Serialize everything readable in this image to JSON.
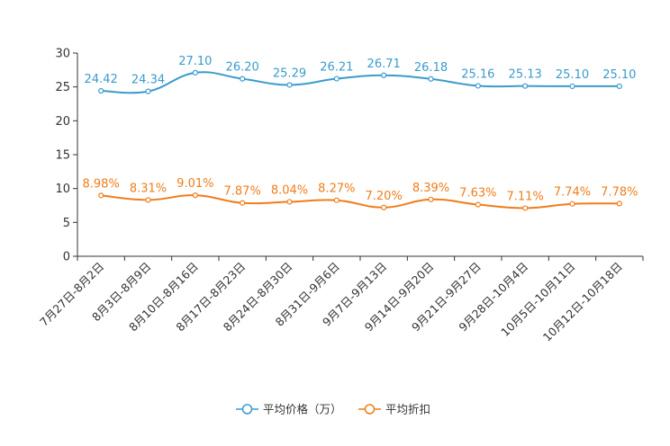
{
  "chart_data": {
    "type": "line",
    "categories": [
      "7月27日-8月2日",
      "8月3日-8月9日",
      "8月10日-8月16日",
      "8月17日-8月23日",
      "8月24日-8月30日",
      "8月31日-9月6日",
      "9月7日-9月13日",
      "9月14日-9月20日",
      "9月21日-9月27日",
      "9月28日-10月4日",
      "10月5日-10月11日",
      "10月12日-10月18日"
    ],
    "series": [
      {
        "name": "平均价格（万）",
        "color": "#3a9bcd",
        "values": [
          24.42,
          24.34,
          27.1,
          26.2,
          25.29,
          26.21,
          26.71,
          26.18,
          25.16,
          25.13,
          25.1,
          25.1
        ],
        "labels": [
          "24.42",
          "24.34",
          "27.10",
          "26.20",
          "25.29",
          "26.21",
          "26.71",
          "26.18",
          "25.16",
          "25.13",
          "25.10",
          "25.10"
        ]
      },
      {
        "name": "平均折扣",
        "color": "#f07d1a",
        "values": [
          8.98,
          8.31,
          9.01,
          7.87,
          8.04,
          8.27,
          7.2,
          8.39,
          7.63,
          7.11,
          7.74,
          7.78
        ],
        "labels": [
          "8.98%",
          "8.31%",
          "9.01%",
          "7.87%",
          "8.04%",
          "8.27%",
          "7.20%",
          "8.39%",
          "7.63%",
          "7.11%",
          "7.74%",
          "7.78%"
        ]
      }
    ],
    "yticks": [
      "0",
      "5",
      "10",
      "15",
      "20",
      "25",
      "30"
    ],
    "ylim": [
      0,
      30
    ],
    "title": "",
    "xlabel": "",
    "ylabel": "",
    "legend_position": "bottom-center",
    "grid": false
  }
}
